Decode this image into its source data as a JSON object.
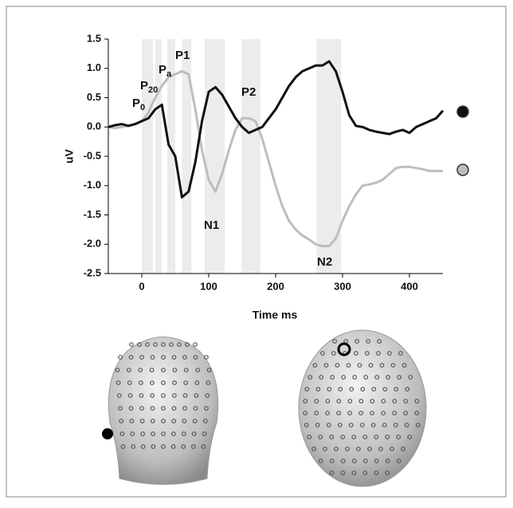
{
  "chart_data": {
    "type": "line",
    "xlabel": "Time ms",
    "ylabel": "uV",
    "x": [
      -50,
      -40,
      -30,
      -20,
      -10,
      0,
      10,
      20,
      30,
      40,
      50,
      60,
      70,
      80,
      90,
      100,
      110,
      120,
      130,
      140,
      150,
      160,
      170,
      180,
      190,
      200,
      210,
      220,
      230,
      240,
      250,
      260,
      270,
      280,
      290,
      300,
      310,
      320,
      330,
      340,
      350,
      360,
      370,
      380,
      390,
      400,
      410,
      420,
      430,
      440,
      450
    ],
    "series": [
      {
        "color": "#111111",
        "values": [
          0,
          0.03,
          0.05,
          0.02,
          0.05,
          0.1,
          0.15,
          0.3,
          0.38,
          -0.3,
          -0.5,
          -1.2,
          -1.1,
          -0.6,
          0.1,
          0.6,
          0.68,
          0.55,
          0.35,
          0.15,
          0.0,
          -0.1,
          -0.05,
          0.0,
          0.15,
          0.3,
          0.5,
          0.7,
          0.85,
          0.95,
          1.0,
          1.05,
          1.05,
          1.12,
          0.95,
          0.6,
          0.2,
          0.02,
          0.0,
          -0.05,
          -0.08,
          -0.1,
          -0.12,
          -0.08,
          -0.05,
          -0.1,
          0.0,
          0.05,
          0.1,
          0.15,
          0.28
        ]
      },
      {
        "color": "#bdbdbd",
        "values": [
          0,
          -0.02,
          0,
          0.02,
          0.05,
          0.1,
          0.25,
          0.5,
          0.7,
          0.85,
          0.9,
          0.95,
          0.9,
          0.3,
          -0.4,
          -0.9,
          -1.1,
          -0.8,
          -0.4,
          -0.05,
          0.15,
          0.15,
          0.1,
          -0.2,
          -0.6,
          -1.0,
          -1.35,
          -1.6,
          -1.75,
          -1.85,
          -1.92,
          -2.0,
          -2.03,
          -2.03,
          -1.9,
          -1.6,
          -1.35,
          -1.15,
          -1.0,
          -0.98,
          -0.95,
          -0.9,
          -0.8,
          -0.7,
          -0.68,
          -0.68,
          -0.7,
          -0.72,
          -0.75,
          -0.75,
          -0.75
        ]
      }
    ],
    "xlim": [
      -50,
      450
    ],
    "xticks": [
      0,
      100,
      200,
      300,
      400
    ],
    "ylim": [
      -2.5,
      1.5
    ],
    "yticks": [
      -2.5,
      {
        "value": -2,
        "label": "-2.0"
      },
      -1.5,
      {
        "value": -1,
        "label": "-1.0"
      },
      -0.5,
      {
        "value": 0,
        "label": "0.0"
      },
      0.5,
      {
        "value": 1,
        "label": "1.0"
      },
      1.5
    ],
    "shaded_windows": [
      [
        0,
        17
      ],
      [
        20,
        30
      ],
      [
        38,
        50
      ],
      [
        60,
        74
      ],
      [
        94,
        124
      ],
      [
        149,
        177
      ],
      [
        261,
        298
      ]
    ],
    "shade_color": "#ececec",
    "annotations": [
      {
        "text": "P",
        "sub": "0"
      },
      {
        "text": "P",
        "sub": "20"
      },
      {
        "text": "P",
        "sub": "a"
      },
      {
        "text": "P1"
      },
      {
        "text": "P2"
      },
      {
        "text": "N1"
      },
      {
        "text": "N2"
      }
    ]
  }
}
